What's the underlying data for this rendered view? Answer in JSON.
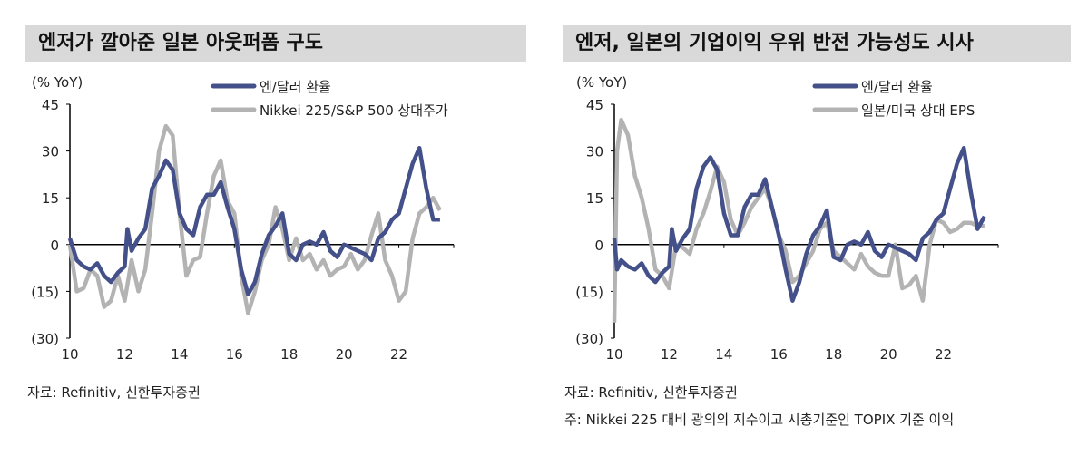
{
  "colors": {
    "yen": "#44508a",
    "other": "#b3b3b3"
  },
  "chart_data": [
    {
      "type": "line",
      "title": "엔저가 깔아준 일본 아웃퍼폼 구도",
      "ylabel": "(% YoY)",
      "ylim": [
        -30,
        45
      ],
      "xlim": [
        2010,
        2024
      ],
      "yticks": [
        "45",
        "30",
        "15",
        "0",
        "(15)",
        "(30)"
      ],
      "xticks": [
        "10",
        "12",
        "14",
        "16",
        "18",
        "20",
        "22"
      ],
      "series": [
        {
          "name": "엔/달러 환율",
          "color": "#44508a",
          "x": [
            2010,
            2010.25,
            2010.5,
            2010.75,
            2011,
            2011.25,
            2011.5,
            2011.75,
            2012,
            2012.1,
            2012.25,
            2012.5,
            2012.75,
            2013,
            2013.25,
            2013.5,
            2013.75,
            2014,
            2014.25,
            2014.5,
            2014.75,
            2015,
            2015.25,
            2015.5,
            2015.75,
            2016,
            2016.25,
            2016.5,
            2016.75,
            2017,
            2017.25,
            2017.5,
            2017.75,
            2018,
            2018.25,
            2018.5,
            2018.75,
            2019,
            2019.25,
            2019.5,
            2019.75,
            2020,
            2020.25,
            2020.5,
            2020.75,
            2021,
            2021.25,
            2021.5,
            2021.75,
            2022,
            2022.25,
            2022.5,
            2022.75,
            2023,
            2023.25,
            2023.5
          ],
          "y": [
            2,
            -5,
            -7,
            -8,
            -6,
            -10,
            -12,
            -9,
            -7,
            5,
            -2,
            2,
            5,
            18,
            22,
            27,
            24,
            10,
            5,
            3,
            12,
            16,
            16,
            20,
            12,
            5,
            -8,
            -16,
            -12,
            -3,
            3,
            6,
            10,
            -3,
            -5,
            0,
            1,
            0,
            4,
            -2,
            -4,
            0,
            -1,
            -2,
            -3,
            -5,
            2,
            4,
            8,
            10,
            18,
            26,
            31,
            18,
            8,
            8
          ]
        },
        {
          "name": "Nikkei 225/S&P  500 상대주가",
          "color": "#b3b3b3",
          "x": [
            2010,
            2010.25,
            2010.5,
            2010.75,
            2011,
            2011.25,
            2011.5,
            2011.75,
            2012,
            2012.25,
            2012.5,
            2012.75,
            2013,
            2013.25,
            2013.5,
            2013.75,
            2014,
            2014.25,
            2014.5,
            2014.75,
            2015,
            2015.25,
            2015.5,
            2015.75,
            2016,
            2016.25,
            2016.5,
            2016.75,
            2017,
            2017.25,
            2017.5,
            2017.75,
            2018,
            2018.25,
            2018.5,
            2018.75,
            2019,
            2019.25,
            2019.5,
            2019.75,
            2020,
            2020.25,
            2020.5,
            2020.75,
            2021,
            2021.25,
            2021.5,
            2021.75,
            2022,
            2022.25,
            2022.5,
            2022.75,
            2023,
            2023.25,
            2023.5
          ],
          "y": [
            0,
            -15,
            -14,
            -8,
            -10,
            -20,
            -18,
            -10,
            -18,
            -5,
            -15,
            -8,
            10,
            30,
            38,
            35,
            10,
            -10,
            -5,
            -4,
            10,
            22,
            27,
            14,
            10,
            -10,
            -22,
            -15,
            -5,
            0,
            12,
            5,
            -5,
            2,
            -5,
            -3,
            -8,
            -5,
            -10,
            -8,
            -7,
            -3,
            -8,
            -5,
            3,
            10,
            -5,
            -10,
            -18,
            -15,
            2,
            10,
            12,
            15,
            11
          ]
        }
      ]
    },
    {
      "type": "line",
      "title": "엔저, 일본의 기업이익 우위 반전 가능성도 시사",
      "ylabel": "(% YoY)",
      "ylim": [
        -30,
        45
      ],
      "xlim": [
        2010,
        2024
      ],
      "yticks": [
        "45",
        "30",
        "15",
        "0",
        "(15)",
        "(30)"
      ],
      "xticks": [
        "10",
        "12",
        "14",
        "16",
        "18",
        "20",
        "22"
      ],
      "series": [
        {
          "name": "엔/달러 환율",
          "color": "#44508a",
          "x": [
            2010,
            2010.1,
            2010.25,
            2010.5,
            2010.75,
            2011,
            2011.25,
            2011.5,
            2011.75,
            2012,
            2012.1,
            2012.25,
            2012.5,
            2012.75,
            2013,
            2013.25,
            2013.5,
            2013.75,
            2014,
            2014.25,
            2014.5,
            2014.75,
            2015,
            2015.25,
            2015.5,
            2015.75,
            2016,
            2016.25,
            2016.5,
            2016.75,
            2017,
            2017.25,
            2017.5,
            2017.75,
            2018,
            2018.25,
            2018.5,
            2018.75,
            2019,
            2019.25,
            2019.5,
            2019.75,
            2020,
            2020.25,
            2020.5,
            2020.75,
            2021,
            2021.25,
            2021.5,
            2021.75,
            2022,
            2022.25,
            2022.5,
            2022.75,
            2023,
            2023.25,
            2023.5
          ],
          "y": [
            2,
            -8,
            -5,
            -7,
            -8,
            -6,
            -10,
            -12,
            -9,
            -7,
            5,
            -2,
            2,
            5,
            18,
            25,
            28,
            24,
            10,
            3,
            3,
            12,
            16,
            16,
            21,
            12,
            3,
            -8,
            -18,
            -12,
            -3,
            3,
            6,
            11,
            -4,
            -5,
            0,
            1,
            0,
            4,
            -2,
            -4,
            0,
            -1,
            -2,
            -3,
            -5,
            2,
            4,
            8,
            10,
            18,
            26,
            31,
            17,
            5,
            9
          ]
        },
        {
          "name": "일본/미국 상대 EPS",
          "color": "#b3b3b3",
          "x": [
            2010,
            2010.1,
            2010.25,
            2010.5,
            2010.75,
            2011,
            2011.25,
            2011.5,
            2011.75,
            2012,
            2012.25,
            2012.5,
            2012.75,
            2013,
            2013.25,
            2013.5,
            2013.75,
            2014,
            2014.25,
            2014.5,
            2014.75,
            2015,
            2015.25,
            2015.5,
            2015.75,
            2016,
            2016.25,
            2016.5,
            2016.75,
            2017,
            2017.25,
            2017.5,
            2017.75,
            2018,
            2018.25,
            2018.5,
            2018.75,
            2019,
            2019.25,
            2019.5,
            2019.75,
            2020,
            2020.25,
            2020.5,
            2020.75,
            2021,
            2021.25,
            2021.5,
            2021.75,
            2022,
            2022.25,
            2022.5,
            2022.75,
            2023,
            2023.25,
            2023.5
          ],
          "y": [
            -25,
            30,
            40,
            35,
            22,
            15,
            5,
            -8,
            -10,
            -14,
            0,
            -1,
            -3,
            5,
            10,
            17,
            25,
            20,
            8,
            3,
            7,
            12,
            15,
            18,
            12,
            3,
            -2,
            -12,
            -10,
            -6,
            -2,
            5,
            7,
            -2,
            -4,
            -6,
            -8,
            -3,
            -7,
            -9,
            -10,
            -10,
            0,
            -14,
            -13,
            -10,
            -18,
            0,
            8,
            7,
            4,
            5,
            7,
            7,
            6,
            6
          ]
        }
      ]
    }
  ],
  "sources": [
    "자료: Refinitiv, 신한투자증권",
    "자료: Refinitiv, 신한투자증권"
  ],
  "note": "주: Nikkei 225 대비 광의의 지수이고 시총기준인 TOPIX 기준 이익"
}
